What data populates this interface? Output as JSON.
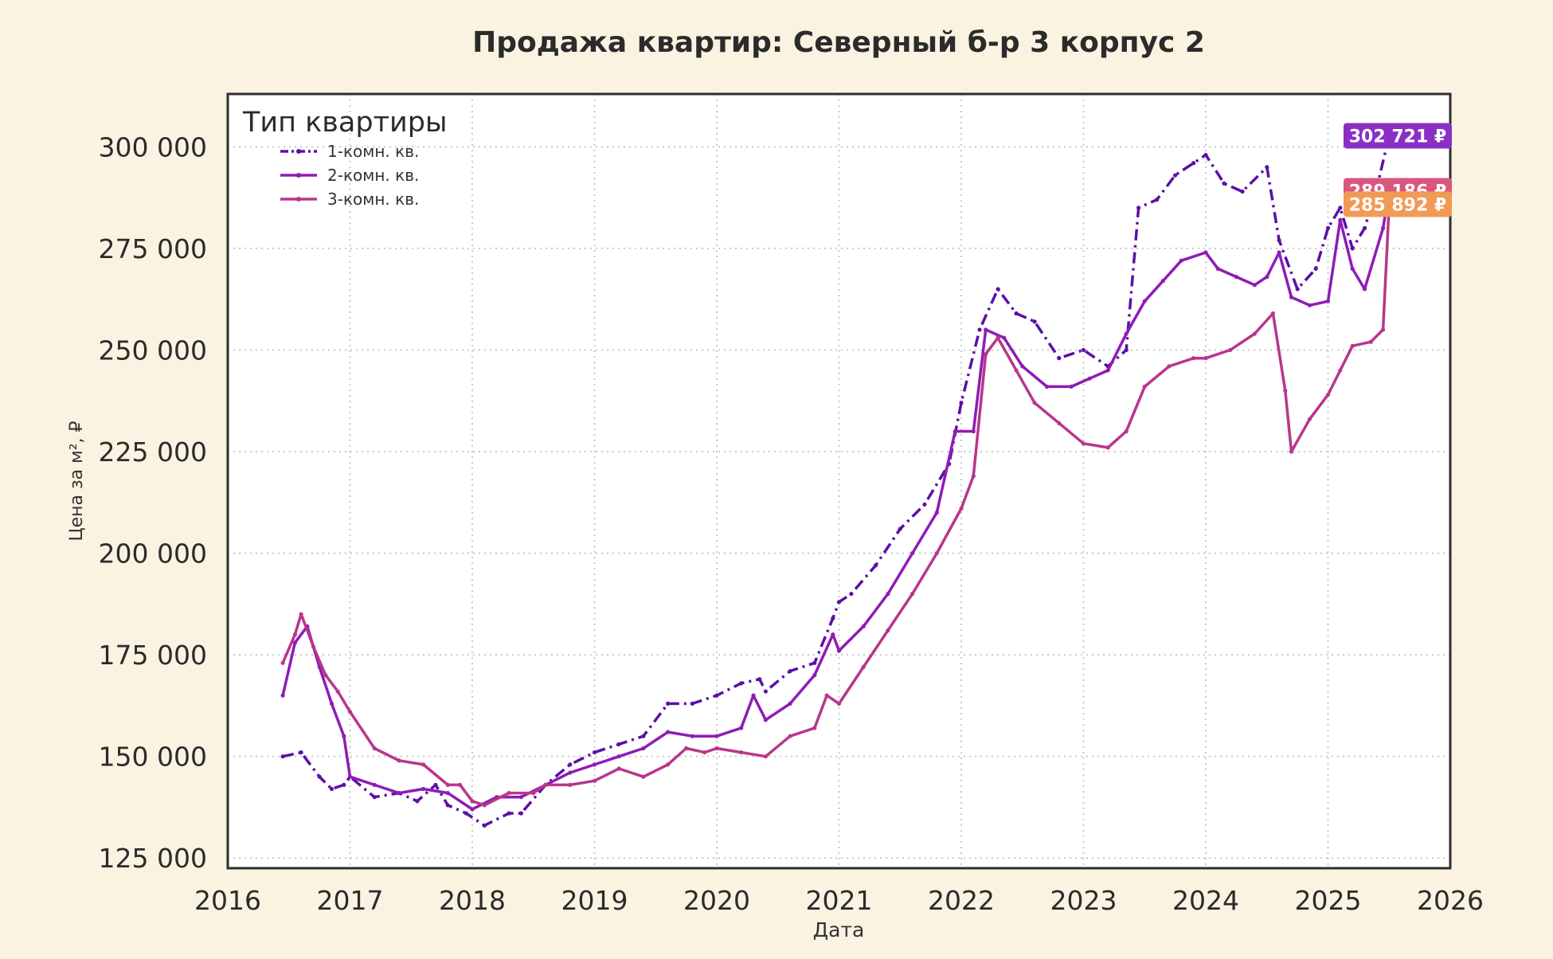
{
  "chart_data": {
    "type": "line",
    "title": "Продажа квартир: Северный б-р 3 корпус 2",
    "xlabel": "Дата",
    "ylabel": "Цена за м², ₽",
    "xlim": [
      2016,
      2026
    ],
    "ylim": [
      122500,
      313000
    ],
    "x_ticks": [
      2016,
      2017,
      2018,
      2019,
      2020,
      2021,
      2022,
      2023,
      2024,
      2025,
      2026
    ],
    "y_ticks": [
      125000,
      150000,
      175000,
      200000,
      225000,
      250000,
      275000,
      300000
    ],
    "y_tick_labels": [
      "125 000",
      "150 000",
      "175 000",
      "200 000",
      "225 000",
      "250 000",
      "275 000",
      "300 000"
    ],
    "grid": true,
    "legend": {
      "title": "Тип квартиры",
      "position": "top-left"
    },
    "series": [
      {
        "name": "1-комн. кв.",
        "color": "#5b10a8",
        "dash": "dashdot",
        "end_label": "302 721 ₽",
        "end_label_color": "#8a2fc4",
        "end_label_value": 302721,
        "x": [
          2016.45,
          2016.6,
          2016.75,
          2016.85,
          2016.95,
          2017.0,
          2017.2,
          2017.4,
          2017.55,
          2017.7,
          2017.8,
          2017.95,
          2018.1,
          2018.3,
          2018.4,
          2018.6,
          2018.8,
          2019.0,
          2019.2,
          2019.4,
          2019.6,
          2019.8,
          2020.0,
          2020.2,
          2020.35,
          2020.4,
          2020.6,
          2020.8,
          2020.95,
          2021.0,
          2021.1,
          2021.3,
          2021.5,
          2021.7,
          2021.9,
          2022.0,
          2022.15,
          2022.3,
          2022.45,
          2022.6,
          2022.8,
          2023.0,
          2023.2,
          2023.35,
          2023.45,
          2023.6,
          2023.75,
          2023.9,
          2024.0,
          2024.15,
          2024.3,
          2024.5,
          2024.6,
          2024.75,
          2024.9,
          2025.0,
          2025.1,
          2025.2,
          2025.3,
          2025.4,
          2025.5
        ],
        "y": [
          150000,
          151000,
          145000,
          142000,
          143000,
          145000,
          140000,
          141000,
          139000,
          143000,
          138000,
          136000,
          133000,
          136000,
          136000,
          143000,
          148000,
          151000,
          153000,
          155000,
          163000,
          163000,
          165000,
          168000,
          169000,
          166000,
          171000,
          173000,
          184000,
          188000,
          190000,
          197000,
          206000,
          212000,
          222000,
          237000,
          255000,
          265000,
          259000,
          257000,
          248000,
          250000,
          246000,
          250000,
          285000,
          287000,
          293000,
          296000,
          298000,
          291000,
          289000,
          295000,
          277000,
          265000,
          270000,
          280000,
          285000,
          275000,
          280000,
          290000,
          302721
        ]
      },
      {
        "name": "2-комн. кв.",
        "color": "#8e1cb5",
        "dash": "solid",
        "end_label": "289 186 ₽",
        "end_label_color": "#d8577f",
        "end_label_value": 289186,
        "x": [
          2016.45,
          2016.55,
          2016.65,
          2016.75,
          2016.85,
          2016.95,
          2017.0,
          2017.2,
          2017.4,
          2017.6,
          2017.8,
          2018.0,
          2018.2,
          2018.4,
          2018.6,
          2018.8,
          2019.0,
          2019.2,
          2019.4,
          2019.6,
          2019.8,
          2020.0,
          2020.2,
          2020.3,
          2020.4,
          2020.6,
          2020.8,
          2020.95,
          2021.0,
          2021.2,
          2021.4,
          2021.6,
          2021.8,
          2021.95,
          2022.1,
          2022.2,
          2022.35,
          2022.5,
          2022.7,
          2022.9,
          2023.05,
          2023.2,
          2023.35,
          2023.5,
          2023.65,
          2023.8,
          2024.0,
          2024.1,
          2024.25,
          2024.4,
          2024.5,
          2024.6,
          2024.7,
          2024.85,
          2025.0,
          2025.1,
          2025.2,
          2025.3,
          2025.45,
          2025.5
        ],
        "y": [
          165000,
          178000,
          182000,
          172000,
          163000,
          155000,
          145000,
          143000,
          141000,
          142000,
          141000,
          137000,
          140000,
          140000,
          143000,
          146000,
          148000,
          150000,
          152000,
          156000,
          155000,
          155000,
          157000,
          165000,
          159000,
          163000,
          170000,
          180000,
          176000,
          182000,
          190000,
          200000,
          210000,
          230000,
          230000,
          255000,
          253000,
          246000,
          241000,
          241000,
          243000,
          245000,
          254000,
          262000,
          267000,
          272000,
          274000,
          270000,
          268000,
          266000,
          268000,
          274000,
          263000,
          261000,
          262000,
          282000,
          270000,
          265000,
          280000,
          289186
        ]
      },
      {
        "name": "3-комн. кв.",
        "color": "#b8368a",
        "dash": "solid",
        "end_label": "285 892 ₽",
        "end_label_color": "#f19a56",
        "end_label_value": 285892,
        "x": [
          2016.45,
          2016.55,
          2016.6,
          2016.7,
          2016.8,
          2016.9,
          2017.0,
          2017.2,
          2017.4,
          2017.6,
          2017.8,
          2017.9,
          2018.0,
          2018.1,
          2018.3,
          2018.5,
          2018.6,
          2018.8,
          2019.0,
          2019.2,
          2019.4,
          2019.6,
          2019.75,
          2019.9,
          2020.0,
          2020.2,
          2020.4,
          2020.6,
          2020.8,
          2020.9,
          2021.0,
          2021.2,
          2021.4,
          2021.6,
          2021.8,
          2022.0,
          2022.1,
          2022.2,
          2022.3,
          2022.45,
          2022.6,
          2022.8,
          2023.0,
          2023.2,
          2023.35,
          2023.5,
          2023.7,
          2023.9,
          2024.0,
          2024.2,
          2024.4,
          2024.55,
          2024.65,
          2024.7,
          2024.85,
          2025.0,
          2025.1,
          2025.2,
          2025.35,
          2025.45,
          2025.5
        ],
        "y": [
          173000,
          180000,
          185000,
          177000,
          170000,
          166000,
          161000,
          152000,
          149000,
          148000,
          143000,
          143000,
          139000,
          138000,
          141000,
          141000,
          143000,
          143000,
          144000,
          147000,
          145000,
          148000,
          152000,
          151000,
          152000,
          151000,
          150000,
          155000,
          157000,
          165000,
          163000,
          172000,
          181000,
          190000,
          200000,
          211000,
          219000,
          249000,
          253000,
          245000,
          237000,
          232000,
          227000,
          226000,
          230000,
          241000,
          246000,
          248000,
          248000,
          250000,
          254000,
          259000,
          240000,
          225000,
          233000,
          239000,
          245000,
          251000,
          252000,
          255000,
          285892
        ]
      }
    ]
  }
}
